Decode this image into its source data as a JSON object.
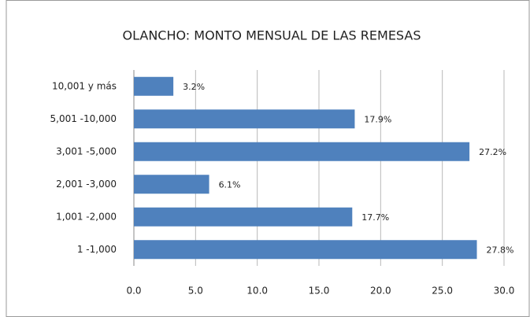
{
  "chart_data": {
    "type": "bar",
    "orientation": "horizontal",
    "title": "OLANCHO: MONTO MENSUAL DE LAS REMESAS",
    "categories": [
      "10,001 y más",
      "5,001 -10,000",
      "3,001 -5,000",
      "2,001 -3,000",
      "1,001 -2,000",
      "1 -1,000"
    ],
    "values": [
      3.2,
      17.9,
      27.2,
      6.1,
      17.7,
      27.8
    ],
    "value_labels": [
      "3.2%",
      "17.9%",
      "27.2%",
      "6.1%",
      "17.7%",
      "27.8%"
    ],
    "color": "#4f81bd",
    "xlim": [
      0,
      30
    ],
    "xticks": [
      {
        "value": 0,
        "label": "0.0"
      },
      {
        "value": 5,
        "label": "5.0"
      },
      {
        "value": 10,
        "label": "10.0"
      },
      {
        "value": 15,
        "label": "15.0"
      },
      {
        "value": 20,
        "label": "20.0"
      },
      {
        "value": 25,
        "label": "25.0"
      },
      {
        "value": 30,
        "label": "30.0"
      }
    ],
    "grid": true
  }
}
